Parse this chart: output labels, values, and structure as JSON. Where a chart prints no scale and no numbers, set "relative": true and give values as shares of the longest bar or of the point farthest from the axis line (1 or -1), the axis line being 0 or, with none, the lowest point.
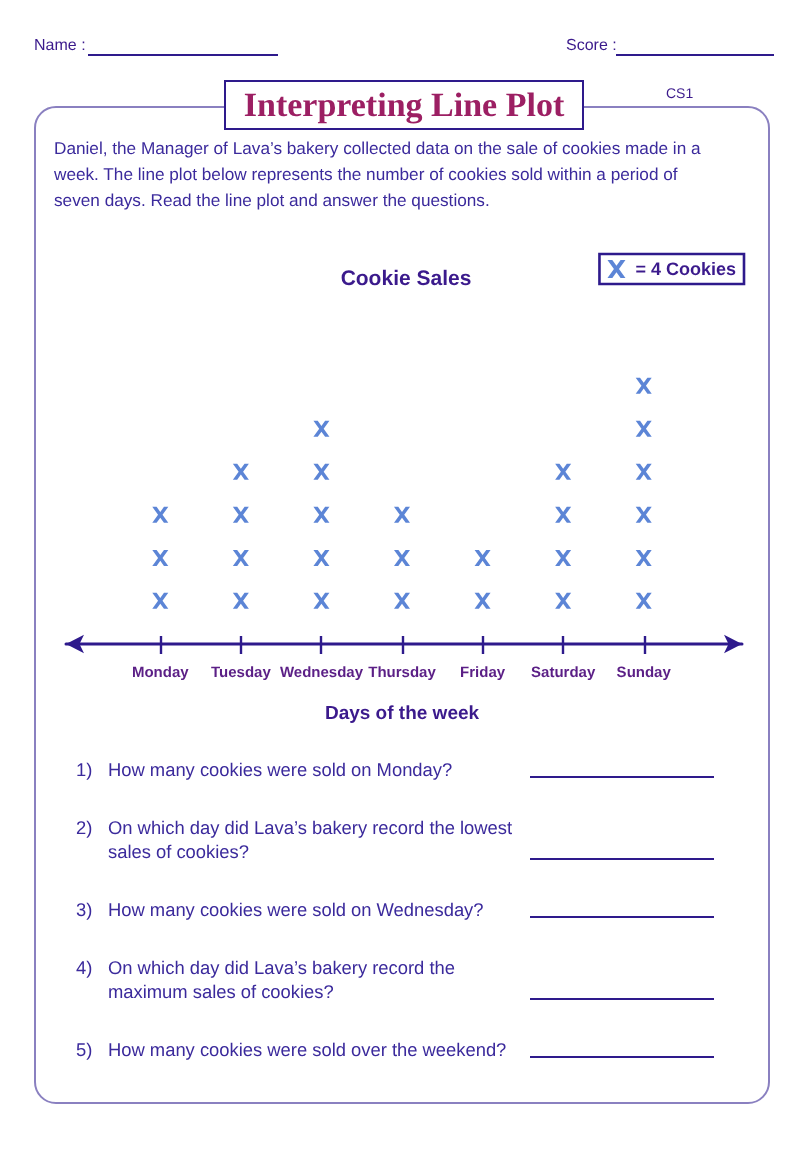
{
  "chart_data": {
    "type": "scatter",
    "title": "Cookie Sales",
    "xlabel": "Days of the week",
    "categories": [
      "Monday",
      "Tuesday",
      "Wednesday",
      "Thursday",
      "Friday",
      "Saturday",
      "Sunday"
    ],
    "series": [
      {
        "name": "= 4 Cookies",
        "color": "#3366cc",
        "x": [
          "Monday",
          "Monday",
          "Monday",
          "Tuesday",
          "Tuesday",
          "Tuesday",
          "Tuesday",
          "Wednesday",
          "Wednesday",
          "Wednesday",
          "Wednesday",
          "Wednesday",
          "Thursday",
          "Thursday",
          "Thursday",
          "Friday",
          "Friday",
          "Saturday",
          "Saturday",
          "Saturday",
          "Saturday",
          "Sunday",
          "Sunday",
          "Sunday",
          "Sunday",
          "Sunday",
          "Sunday"
        ],
        "values": [
          0.167,
          0.333,
          0.5,
          0.167,
          0.333,
          0.5,
          0.667,
          0.167,
          0.333,
          0.5,
          0.667,
          0.833,
          0.167,
          0.333,
          0.5,
          0.167,
          0.333,
          0.167,
          0.333,
          0.5,
          0.667,
          0.167,
          0.333,
          0.5,
          0.667,
          0.833,
          1
        ]
      }
    ],
    "relative": true,
    "marker": "cross",
    "legend": "top right",
    "grid": false,
    "tick_labels": "x",
    "annotations": [
      "Name :",
      "Score :",
      "Interpreting Line Plot",
      "CS1",
      "Daniel, the Manager of Lava’s bakery collected data on the sale of cookies made in a week. The line plot below represents the number of cookies sold within a period of seven days. Read the line plot and answer the questions.",
      "1)",
      "How many cookies were sold on Monday?",
      "2)",
      "On which day did Lava’s bakery record the lowest sales of cookies?",
      "3)",
      "How many cookies were sold on Wednesday?",
      "4)",
      "On which day did Lava’s bakery record the maximum sales of cookies?",
      "5)",
      "How many cookies were sold over the weekend?"
    ]
  }
}
